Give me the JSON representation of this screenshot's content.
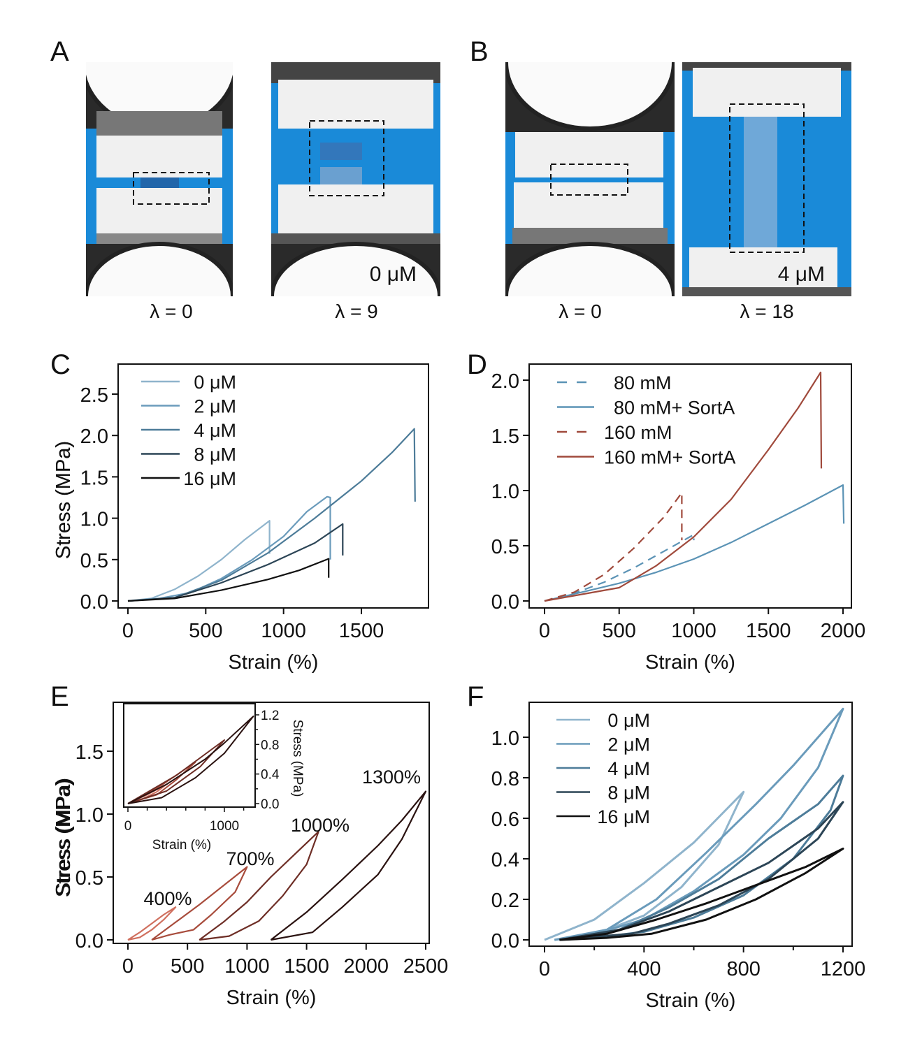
{
  "panels": {
    "A": {
      "letter": "A",
      "captions": [
        "λ = 0",
        "λ = 9"
      ],
      "photo_label": "0 μM"
    },
    "B": {
      "letter": "B",
      "captions": [
        "λ = 0",
        "λ = 18"
      ],
      "photo_label": "4 μM"
    },
    "C": {
      "letter": "C"
    },
    "D": {
      "letter": "D"
    },
    "E": {
      "letter": "E"
    },
    "F": {
      "letter": "F"
    }
  },
  "colors": {
    "background_blue": "#1a8ad8",
    "c0": "#8fb4cc",
    "c2": "#6a9bbb",
    "c4": "#4d7c99",
    "c8": "#2c4556",
    "c16": "#111111",
    "blue": "#5b93b5",
    "red": "#a04a3c",
    "e400": "#d0705f",
    "e700": "#a84c3c",
    "e1000": "#6e2e26",
    "e1300": "#2a1210"
  },
  "chart_data": [
    {
      "id": "C",
      "type": "line",
      "title": "",
      "xlabel": "Strain (%)",
      "ylabel": "Stress (MPa)",
      "xlim": [
        -60,
        1920
      ],
      "ylim": [
        -0.08,
        2.8
      ],
      "xticks": [
        0,
        500,
        1000,
        1500
      ],
      "yticks": [
        0.0,
        0.5,
        1.0,
        1.5,
        2.0,
        2.5
      ],
      "ytick_labels": [
        "0.0",
        "0.5",
        "1.0",
        "1.5",
        "2.0",
        "2.5"
      ],
      "legend": "top-left",
      "series": [
        {
          "name": "0 μM",
          "color_key": "c0",
          "x": [
            0,
            150,
            300,
            450,
            600,
            750,
            910,
            910
          ],
          "y": [
            0,
            0.03,
            0.14,
            0.3,
            0.5,
            0.74,
            0.97,
            0.57
          ]
        },
        {
          "name": "2 μM",
          "color_key": "c2",
          "x": [
            0,
            200,
            400,
            600,
            800,
            1000,
            1150,
            1280,
            1300,
            1300
          ],
          "y": [
            0,
            0.03,
            0.1,
            0.27,
            0.5,
            0.78,
            1.08,
            1.26,
            1.25,
            0.5
          ]
        },
        {
          "name": "4 μM",
          "color_key": "c4",
          "x": [
            0,
            300,
            600,
            900,
            1200,
            1500,
            1700,
            1840,
            1845
          ],
          "y": [
            0,
            0.04,
            0.25,
            0.58,
            1.0,
            1.45,
            1.8,
            2.08,
            1.2
          ]
        },
        {
          "name": "8 μM",
          "color_key": "c8",
          "x": [
            0,
            300,
            600,
            900,
            1200,
            1380,
            1380
          ],
          "y": [
            0,
            0.04,
            0.22,
            0.44,
            0.7,
            0.93,
            0.55
          ]
        },
        {
          "name": "16 μM",
          "color_key": "c16",
          "x": [
            0,
            300,
            600,
            900,
            1100,
            1290,
            1290
          ],
          "y": [
            0,
            0.03,
            0.13,
            0.26,
            0.37,
            0.51,
            0.28
          ]
        }
      ]
    },
    {
      "id": "D",
      "type": "line",
      "title": "",
      "xlabel": "Strain (%)",
      "ylabel": "Stress (MPa)",
      "xlim": [
        -60,
        2060
      ],
      "ylim": [
        -0.06,
        2.15
      ],
      "xticks": [
        0,
        500,
        1000,
        1500,
        2000
      ],
      "yticks": [
        0.0,
        0.5,
        1.0,
        1.5,
        2.0
      ],
      "ytick_labels": [
        "0.0",
        "0.5",
        "1.0",
        "1.5",
        "2.0"
      ],
      "legend": "top-left",
      "series": [
        {
          "name": "80 mM",
          "color_key": "blue",
          "dashed": true,
          "x": [
            0,
            200,
            400,
            600,
            800,
            1000,
            1000
          ],
          "y": [
            0,
            0.07,
            0.17,
            0.3,
            0.45,
            0.6,
            0.55
          ]
        },
        {
          "name": "80 mM+ SortA",
          "color_key": "blue",
          "dashed": false,
          "x": [
            0,
            250,
            500,
            750,
            1000,
            1250,
            1500,
            1750,
            2000,
            2005
          ],
          "y": [
            0,
            0.08,
            0.16,
            0.26,
            0.38,
            0.53,
            0.7,
            0.87,
            1.05,
            0.7
          ]
        },
        {
          "name": "160 mM",
          "color_key": "red",
          "dashed": true,
          "x": [
            0,
            200,
            400,
            600,
            800,
            920,
            920
          ],
          "y": [
            0,
            0.08,
            0.24,
            0.48,
            0.76,
            0.98,
            0.55
          ]
        },
        {
          "name": "160 mM+ SortA",
          "color_key": "red",
          "dashed": false,
          "x": [
            0,
            250,
            500,
            750,
            1000,
            1250,
            1500,
            1700,
            1850,
            1855
          ],
          "y": [
            0,
            0.06,
            0.12,
            0.32,
            0.58,
            0.92,
            1.37,
            1.75,
            2.07,
            1.2
          ]
        }
      ]
    },
    {
      "id": "E",
      "type": "line",
      "title": "",
      "xlabel": "Strain (%)",
      "ylabel": "Stress (MPa)",
      "xlim": [
        -100,
        2560
      ],
      "ylim": [
        -0.05,
        1.85
      ],
      "xticks": [
        0,
        500,
        1000,
        1500,
        2000,
        2500
      ],
      "yticks": [
        0.0,
        0.5,
        1.0,
        1.5
      ],
      "ytick_labels": [
        "0.0",
        "0.5",
        "1.0",
        "1.5"
      ],
      "annotations": [
        "400%",
        "700%",
        "1000%",
        "1300%"
      ],
      "series": [
        {
          "name": "400%",
          "color_key": "e400",
          "x": [
            0,
            100,
            200,
            300,
            400,
            300,
            200,
            100,
            0
          ],
          "y": [
            0,
            0.06,
            0.13,
            0.2,
            0.26,
            0.16,
            0.08,
            0.02,
            0
          ]
        },
        {
          "name": "700%",
          "color_key": "e700",
          "x": [
            200,
            400,
            600,
            800,
            1000,
            900,
            700,
            550,
            350,
            200
          ],
          "y": [
            0,
            0.14,
            0.28,
            0.43,
            0.58,
            0.38,
            0.2,
            0.08,
            0.04,
            0
          ]
        },
        {
          "name": "1000%",
          "color_key": "e1000",
          "x": [
            600,
            800,
            1000,
            1200,
            1400,
            1600,
            1500,
            1300,
            1100,
            850,
            600
          ],
          "y": [
            0,
            0.14,
            0.3,
            0.5,
            0.68,
            0.86,
            0.6,
            0.35,
            0.15,
            0.03,
            0
          ]
        },
        {
          "name": "1300%",
          "color_key": "e1300",
          "x": [
            1200,
            1500,
            1800,
            2100,
            2300,
            2500,
            2300,
            2100,
            1800,
            1550,
            1200
          ],
          "y": [
            0,
            0.22,
            0.48,
            0.75,
            0.95,
            1.18,
            0.8,
            0.52,
            0.26,
            0.06,
            0
          ]
        }
      ],
      "inset": {
        "xlabel": "Strain (%)",
        "ylabel": "Stress (MPa)",
        "xlim": [
          -20,
          1300
        ],
        "ylim": [
          -0.04,
          1.25
        ],
        "xticks": [
          0,
          1000
        ],
        "xminor": [
          200,
          400,
          600,
          800,
          1200
        ],
        "yticks": [
          0.0,
          0.4,
          0.8,
          1.2
        ],
        "ytick_labels": [
          "0.0",
          "0.4",
          "0.8",
          "1.2"
        ],
        "series": [
          {
            "color_key": "e400",
            "x": [
              0,
              200,
              400,
              300,
              150,
              0
            ],
            "y": [
              0,
              0.12,
              0.26,
              0.16,
              0.06,
              0
            ]
          },
          {
            "color_key": "e700",
            "x": [
              0,
              350,
              700,
              500,
              300,
              0
            ],
            "y": [
              0,
              0.25,
              0.56,
              0.32,
              0.12,
              0
            ]
          },
          {
            "color_key": "e1000",
            "x": [
              0,
              500,
              1000,
              750,
              400,
              0
            ],
            "y": [
              0,
              0.38,
              0.86,
              0.5,
              0.17,
              0
            ]
          },
          {
            "color_key": "e1300",
            "x": [
              0,
              400,
              800,
              1000,
              1300,
              1000,
              700,
              350,
              0
            ],
            "y": [
              0,
              0.26,
              0.6,
              0.82,
              1.18,
              0.68,
              0.35,
              0.08,
              0
            ]
          }
        ]
      }
    },
    {
      "id": "F",
      "type": "line",
      "title": "",
      "xlabel": "Strain (%)",
      "ylabel": "Stress (MPa)",
      "xlim": [
        -40,
        1240
      ],
      "ylim": [
        -0.03,
        1.17
      ],
      "xticks": [
        0,
        400,
        800,
        1200
      ],
      "xminor": [
        200,
        600,
        1000
      ],
      "yticks": [
        0.0,
        0.2,
        0.4,
        0.6,
        0.8,
        1.0
      ],
      "ytick_labels": [
        "0.0",
        "0.2",
        "0.4",
        "0.6",
        "0.8",
        "1.0"
      ],
      "legend": "top-left",
      "series": [
        {
          "name": "0 μM",
          "color_key": "c0",
          "x": [
            0,
            200,
            400,
            600,
            800,
            700,
            550,
            400,
            250,
            100,
            40
          ],
          "y": [
            0,
            0.1,
            0.28,
            0.48,
            0.73,
            0.47,
            0.26,
            0.12,
            0.05,
            0.01,
            0
          ]
        },
        {
          "name": "2 μM",
          "color_key": "c2",
          "x": [
            40,
            250,
            450,
            650,
            850,
            1000,
            1200,
            1100,
            950,
            800,
            600,
            400,
            200,
            40
          ],
          "y": [
            0,
            0.05,
            0.2,
            0.43,
            0.67,
            0.86,
            1.14,
            0.85,
            0.6,
            0.42,
            0.24,
            0.1,
            0.03,
            0
          ]
        },
        {
          "name": "4 μM",
          "color_key": "c4",
          "x": [
            60,
            300,
            500,
            700,
            900,
            1100,
            1200,
            1150,
            1000,
            800,
            600,
            400,
            200,
            60
          ],
          "y": [
            0,
            0.05,
            0.16,
            0.3,
            0.5,
            0.67,
            0.81,
            0.64,
            0.4,
            0.22,
            0.11,
            0.04,
            0.01,
            0
          ]
        },
        {
          "name": "8 μM",
          "color_key": "c8",
          "x": [
            60,
            300,
            500,
            700,
            900,
            1100,
            1200,
            1100,
            900,
            700,
            500,
            350,
            150,
            60
          ],
          "y": [
            0,
            0.05,
            0.14,
            0.26,
            0.38,
            0.55,
            0.68,
            0.5,
            0.3,
            0.17,
            0.08,
            0.03,
            0.01,
            0
          ]
        },
        {
          "name": "16 μM",
          "color_key": "c16",
          "x": [
            60,
            250,
            450,
            650,
            850,
            1050,
            1200,
            1050,
            850,
            650,
            430,
            250,
            60
          ],
          "y": [
            0,
            0.03,
            0.1,
            0.18,
            0.27,
            0.36,
            0.45,
            0.33,
            0.2,
            0.1,
            0.03,
            0.01,
            0
          ]
        }
      ]
    }
  ]
}
